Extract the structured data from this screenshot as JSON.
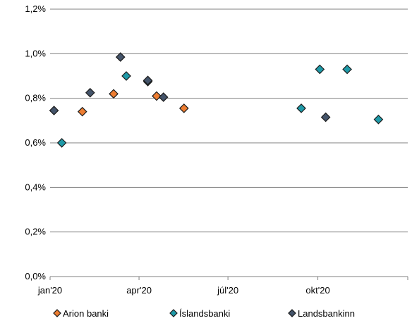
{
  "chart_data": {
    "type": "scatter",
    "x_axis": {
      "type": "date",
      "range": [
        "2020-01-01",
        "2021-01-01"
      ],
      "ticks": [
        {
          "date": "2020-01-01",
          "label": "jan'20"
        },
        {
          "date": "2020-04-01",
          "label": "apr'20"
        },
        {
          "date": "2020-07-01",
          "label": "júl'20"
        },
        {
          "date": "2020-10-01",
          "label": "okt'20"
        }
      ]
    },
    "y_axis": {
      "range": [
        0,
        1.2
      ],
      "unit": "%",
      "ticks": [
        {
          "value": 0.0,
          "label": "0,0%"
        },
        {
          "value": 0.2,
          "label": "0,2%"
        },
        {
          "value": 0.4,
          "label": "0,4%"
        },
        {
          "value": 0.6,
          "label": "0,6%"
        },
        {
          "value": 0.8,
          "label": "0,8%"
        },
        {
          "value": 1.0,
          "label": "1,0%"
        },
        {
          "value": 1.2,
          "label": "1,2%"
        }
      ]
    },
    "grid": "horizontal",
    "legend_position": "bottom",
    "series": [
      {
        "name": "Arion banki",
        "color": "#ED7D31",
        "marker": "diamond",
        "points": [
          {
            "x": "2020-02-03",
            "y": 0.74
          },
          {
            "x": "2020-03-06",
            "y": 0.82
          },
          {
            "x": "2020-04-19",
            "y": 0.81
          },
          {
            "x": "2020-05-17",
            "y": 0.755
          }
        ]
      },
      {
        "name": "Íslandsbanki",
        "color": "#1F9AA8",
        "marker": "diamond",
        "points": [
          {
            "x": "2020-01-13",
            "y": 0.6
          },
          {
            "x": "2020-03-19",
            "y": 0.9
          },
          {
            "x": "2020-04-10",
            "y": 0.875
          },
          {
            "x": "2020-09-14",
            "y": 0.755
          },
          {
            "x": "2020-10-03",
            "y": 0.93
          },
          {
            "x": "2020-10-31",
            "y": 0.93
          },
          {
            "x": "2020-12-02",
            "y": 0.705
          }
        ]
      },
      {
        "name": "Landsbankinn",
        "color": "#44546A",
        "marker": "diamond",
        "points": [
          {
            "x": "2020-01-05",
            "y": 0.745
          },
          {
            "x": "2020-02-11",
            "y": 0.825
          },
          {
            "x": "2020-03-13",
            "y": 0.985
          },
          {
            "x": "2020-04-10",
            "y": 0.88
          },
          {
            "x": "2020-04-26",
            "y": 0.805
          },
          {
            "x": "2020-10-09",
            "y": 0.715
          }
        ]
      }
    ]
  }
}
